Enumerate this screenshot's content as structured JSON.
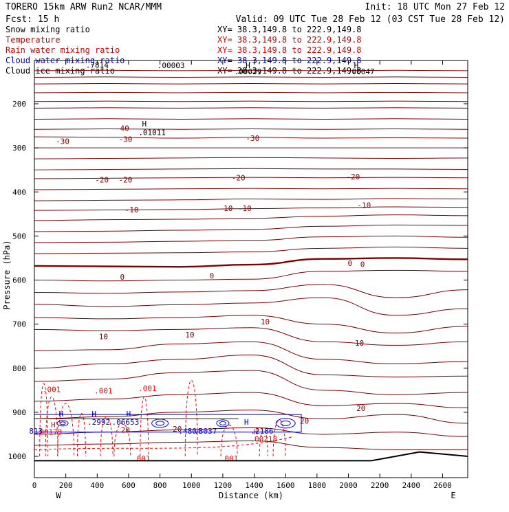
{
  "header": {
    "line1": "TORERO  15km ARW   Run2    NCAR/MMM",
    "init": "Init: 18 UTC Mon 27 Feb 12",
    "fcst": "Fcst:   15 h",
    "valid": "Valid: 09 UTC Tue 28 Feb 12 (03 CST Tue 28 Feb 12)"
  },
  "legend": [
    {
      "name": "Snow mixing ratio",
      "xy": "XY=  38.3,149.8 to 222.9,149.8",
      "color": "#000000"
    },
    {
      "name": "Temperature",
      "xy": "XY=  38.3,149.8 to 222.9,149.8",
      "color": "#cc0000"
    },
    {
      "name": "Rain water mixing ratio",
      "xy": "XY=  38.3,149.8 to 222.9,149.8",
      "color": "#cc0000"
    },
    {
      "name": "Cloud water mixing ratio",
      "xy": "XY=  38.3,149.8 to 222.9,149.8",
      "color": "#0000cc"
    },
    {
      "name": "Cloud ice mixing ratio",
      "xy": "XY=  38.3,149.8 to 222.9,149.8",
      "color": "#000000"
    }
  ],
  "colors": {
    "temperature": "#800000",
    "rain": "#ff0000",
    "cloud_water": "#0000cc",
    "cloud_ice": "#000000",
    "text": "#000000"
  },
  "chart_data": {
    "type": "cross-section contour",
    "xlabel": "Distance (km)",
    "ylabel": "Pressure (hPa)",
    "xlim": [
      0,
      2760
    ],
    "ylim": [
      1000,
      100
    ],
    "x_ticks": [
      0,
      200,
      400,
      600,
      800,
      1000,
      1200,
      1400,
      1600,
      1800,
      2000,
      2200,
      2400,
      2600
    ],
    "y_ticks": [
      200,
      300,
      400,
      500,
      600,
      700,
      800,
      900,
      1000
    ],
    "west_label": "W",
    "east_label": "E",
    "temperature_isotherms": [
      {
        "pressure": [
          125,
          124,
          125,
          124,
          125,
          124,
          125
        ]
      },
      {
        "pressure": [
          140,
          139,
          140,
          139,
          140,
          139,
          140
        ]
      },
      {
        "pressure": [
          155,
          154,
          155,
          154,
          155,
          154,
          155
        ]
      },
      {
        "pressure": [
          175,
          174,
          175,
          174,
          175,
          174,
          175
        ]
      },
      {
        "pressure": [
          195,
          194,
          195,
          194,
          195,
          194,
          195
        ]
      },
      {
        "pressure": [
          210,
          209,
          210,
          209,
          210,
          209,
          210
        ]
      },
      {
        "pressure": [
          235,
          234,
          235,
          234,
          235,
          234,
          235
        ]
      },
      {
        "pressure": [
          258,
          257,
          258,
          257,
          258,
          257,
          258
        ]
      },
      {
        "pressure": [
          275,
          276,
          278,
          276,
          278,
          277,
          278
        ]
      },
      {
        "pressure": [
          300,
          300,
          300,
          300,
          300,
          300,
          300
        ]
      },
      {
        "pressure": [
          325,
          324,
          323,
          322,
          323,
          324,
          323
        ]
      },
      {
        "pressure": [
          350,
          349,
          348,
          347,
          348,
          348,
          349
        ]
      },
      {
        "pressure": [
          370,
          369,
          368,
          367,
          368,
          367,
          368
        ]
      },
      {
        "pressure": [
          395,
          394,
          393,
          392,
          393,
          392,
          393
        ]
      },
      {
        "pressure": [
          420,
          419,
          418,
          416,
          417,
          415,
          416
        ]
      },
      {
        "pressure": [
          442,
          441,
          440,
          438,
          436,
          434,
          435
        ]
      },
      {
        "pressure": [
          465,
          463,
          462,
          460,
          455,
          452,
          454
        ]
      },
      {
        "pressure": [
          490,
          489,
          487,
          485,
          478,
          475,
          476
        ]
      },
      {
        "pressure": [
          515,
          514,
          512,
          510,
          502,
          500,
          503
        ]
      },
      {
        "pressure": [
          540,
          539,
          538,
          536,
          528,
          525,
          528
        ]
      },
      {
        "pressure": [
          568,
          569,
          570,
          565,
          552,
          550,
          553
        ]
      },
      {
        "pressure": [
          600,
          602,
          600,
          598,
          580,
          578,
          580
        ]
      },
      {
        "pressure": [
          628,
          630,
          627,
          624,
          610,
          640,
          622
        ]
      },
      {
        "pressure": [
          655,
          660,
          656,
          652,
          640,
          680,
          665
        ]
      },
      {
        "pressure": [
          685,
          688,
          685,
          680,
          700,
          720,
          705
        ]
      },
      {
        "pressure": [
          712,
          715,
          712,
          708,
          740,
          748,
          740
        ]
      },
      {
        "pressure": [
          760,
          758,
          745,
          740,
          780,
          790,
          785
        ]
      },
      {
        "pressure": [
          800,
          790,
          780,
          770,
          815,
          820,
          818
        ]
      },
      {
        "pressure": [
          830,
          825,
          810,
          805,
          850,
          860,
          855
        ]
      },
      {
        "pressure": [
          875,
          870,
          860,
          855,
          885,
          880,
          890
        ]
      },
      {
        "pressure": [
          915,
          910,
          900,
          895,
          915,
          905,
          925
        ]
      },
      {
        "pressure": [
          950,
          945,
          940,
          935,
          950,
          945,
          955
        ]
      },
      {
        "pressure": [
          975,
          972,
          968,
          965,
          980,
          985,
          985
        ]
      }
    ],
    "isotherm_x": [
      0,
      460,
      920,
      1380,
      1840,
      2300,
      2760
    ],
    "freezing_level_index": 20,
    "temperature_labels": [
      {
        "text": "-40",
        "x": 560,
        "p": 255
      },
      {
        "text": "-30",
        "x": 180,
        "p": 285
      },
      {
        "text": "-30",
        "x": 580,
        "p": 280
      },
      {
        "text": "-30",
        "x": 1390,
        "p": 278
      },
      {
        "text": "-20",
        "x": 430,
        "p": 372
      },
      {
        "text": "-20",
        "x": 580,
        "p": 372
      },
      {
        "text": "-20",
        "x": 1300,
        "p": 368
      },
      {
        "text": "-20",
        "x": 2030,
        "p": 365
      },
      {
        "text": "-10",
        "x": 620,
        "p": 440
      },
      {
        "text": "-10",
        "x": 1220,
        "p": 437
      },
      {
        "text": "-10",
        "x": 1340,
        "p": 437
      },
      {
        "text": "-10",
        "x": 2100,
        "p": 430
      },
      {
        "text": "0",
        "x": 560,
        "p": 593
      },
      {
        "text": "0",
        "x": 1130,
        "p": 590
      },
      {
        "text": "0",
        "x": 2010,
        "p": 562
      },
      {
        "text": "0",
        "x": 2090,
        "p": 564
      },
      {
        "text": "10",
        "x": 440,
        "p": 728
      },
      {
        "text": "10",
        "x": 990,
        "p": 724
      },
      {
        "text": "10",
        "x": 1470,
        "p": 694
      },
      {
        "text": "10",
        "x": 2070,
        "p": 743
      },
      {
        "text": "20",
        "x": 580,
        "p": 940
      },
      {
        "text": "20",
        "x": 910,
        "p": 938
      },
      {
        "text": "20",
        "x": 1720,
        "p": 920
      },
      {
        "text": "20",
        "x": 2080,
        "p": 891
      }
    ],
    "rain_labels": [
      {
        "text": ".001",
        "x": 110,
        "p": 848
      },
      {
        "text": ".001",
        "x": 440,
        "p": 851
      },
      {
        "text": ".001",
        "x": 720,
        "p": 846
      },
      {
        "text": ".001",
        "x": 680,
        "p": 1005
      },
      {
        "text": ".001",
        "x": 1240,
        "p": 1005
      },
      {
        "text": ".00173",
        "x": 90,
        "p": 945
      },
      {
        "text": ".00218",
        "x": 1460,
        "p": 960
      },
      {
        "text": "H",
        "x": 120,
        "p": 928
      },
      {
        "text": "H",
        "x": 1410,
        "p": 944
      }
    ],
    "cloud_water_labels": [
      {
        "text": ".2992",
        "x": 410,
        "p": 922
      },
      {
        "text": ".06653",
        "x": 580,
        "p": 922
      },
      {
        "text": ".2186",
        "x": 1450,
        "p": 942
      },
      {
        "text": ".4804",
        "x": 990,
        "p": 942
      },
      {
        "text": ".3037",
        "x": 1090,
        "p": 942
      },
      {
        "text": "813",
        "x": 10,
        "p": 942
      },
      {
        "text": "H",
        "x": 380,
        "p": 903
      },
      {
        "text": "H",
        "x": 600,
        "p": 903
      },
      {
        "text": "H",
        "x": 1350,
        "p": 922
      },
      {
        "text": "H",
        "x": 170,
        "p": 903
      }
    ],
    "ice_labels": [
      {
        "text": ".01011",
        "x": 750,
        "p": 265
      },
      {
        "text": "H",
        "x": 700,
        "p": 245
      },
      {
        "text": ".00003",
        "x": 870,
        "p": 113
      },
      {
        "text": ".00029",
        "x": 1360,
        "p": 127
      },
      {
        "text": ".00047",
        "x": 2080,
        "p": 127
      },
      {
        "text": "H",
        "x": 1360,
        "p": 113
      },
      {
        "text": "H",
        "x": 2050,
        "p": 113
      },
      {
        "text": ".7814",
        "x": 400,
        "p": 112
      }
    ],
    "terrain_pressure": [
      1010,
      1010,
      1010,
      1010,
      1010,
      1010,
      1010,
      1010,
      990,
      1000
    ]
  }
}
